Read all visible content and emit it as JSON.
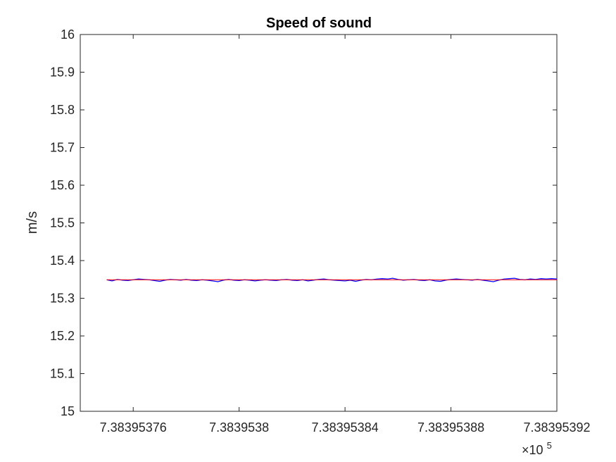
{
  "chart_data": {
    "type": "line",
    "title": "Speed of sound",
    "xlabel": "",
    "ylabel": "m/s",
    "x_exponent_label": {
      "base": "×10",
      "exponent": "5"
    },
    "xlim": [
      7.38395374,
      7.38395392
    ],
    "ylim": [
      15,
      16
    ],
    "xticks": [
      7.38395376,
      7.3839538,
      7.38395384,
      7.38395388,
      7.38395392
    ],
    "xtick_labels": [
      "7.38395376",
      "7.3839538",
      "7.38395384",
      "7.38395388",
      "7.38395392"
    ],
    "yticks": [
      15,
      15.1,
      15.2,
      15.3,
      15.4,
      15.5,
      15.6,
      15.7,
      15.8,
      15.9,
      16
    ],
    "ytick_labels": [
      "15",
      "15.1",
      "15.2",
      "15.3",
      "15.4",
      "15.5",
      "15.6",
      "15.7",
      "15.8",
      "15.9",
      "16"
    ],
    "grid": false,
    "series": [
      {
        "color": "#0000ff",
        "x": [
          7.38395375,
          7.383953752,
          7.383953754,
          7.383953756,
          7.383953758,
          7.38395376,
          7.383953762,
          7.383953764,
          7.383953766,
          7.383953768,
          7.38395377,
          7.383953772,
          7.383953774,
          7.383953776,
          7.383953778,
          7.38395378,
          7.383953782,
          7.383953784,
          7.383953786,
          7.383953788,
          7.38395379,
          7.383953792,
          7.383953794,
          7.383953796,
          7.383953798,
          7.3839538,
          7.383953802,
          7.383953804,
          7.383953806,
          7.383953808,
          7.38395381,
          7.383953812,
          7.383953814,
          7.383953816,
          7.383953818,
          7.38395382,
          7.383953822,
          7.383953824,
          7.383953826,
          7.383953828,
          7.38395383,
          7.383953832,
          7.383953834,
          7.383953836,
          7.383953838,
          7.38395384,
          7.383953842,
          7.383953844,
          7.383953846,
          7.383953848,
          7.38395385,
          7.383953852,
          7.383953854,
          7.383953856,
          7.383953858,
          7.38395386,
          7.383953862,
          7.383953864,
          7.383953866,
          7.383953868,
          7.38395387,
          7.383953872,
          7.383953874,
          7.383953876,
          7.383953878,
          7.38395388,
          7.383953882,
          7.383953884,
          7.383953886,
          7.383953888,
          7.38395389,
          7.383953892,
          7.383953894,
          7.383953896,
          7.383953898,
          7.3839539,
          7.383953902,
          7.383953904,
          7.383953906,
          7.383953908,
          7.38395391,
          7.383953912,
          7.383953914,
          7.383953916,
          7.383953918,
          7.38395392
        ],
        "y": [
          15.349,
          15.346,
          15.35,
          15.348,
          15.347,
          15.349,
          15.351,
          15.35,
          15.349,
          15.347,
          15.345,
          15.348,
          15.35,
          15.349,
          15.348,
          15.35,
          15.348,
          15.347,
          15.349,
          15.348,
          15.346,
          15.344,
          15.348,
          15.35,
          15.348,
          15.347,
          15.349,
          15.348,
          15.346,
          15.348,
          15.349,
          15.348,
          15.347,
          15.349,
          15.35,
          15.348,
          15.347,
          15.349,
          15.346,
          15.348,
          15.35,
          15.351,
          15.349,
          15.348,
          15.347,
          15.346,
          15.348,
          15.345,
          15.348,
          15.35,
          15.349,
          15.351,
          15.352,
          15.351,
          15.353,
          15.35,
          15.348,
          15.349,
          15.35,
          15.348,
          15.347,
          15.349,
          15.346,
          15.345,
          15.348,
          15.35,
          15.351,
          15.35,
          15.349,
          15.348,
          15.35,
          15.348,
          15.346,
          15.344,
          15.348,
          15.351,
          15.352,
          15.353,
          15.35,
          15.349,
          15.351,
          15.35,
          15.352,
          15.351,
          15.352,
          15.351
        ]
      },
      {
        "color": "#ff0000",
        "x": [
          7.38395375,
          7.38395392
        ],
        "y": [
          15.349,
          15.349
        ]
      }
    ]
  }
}
